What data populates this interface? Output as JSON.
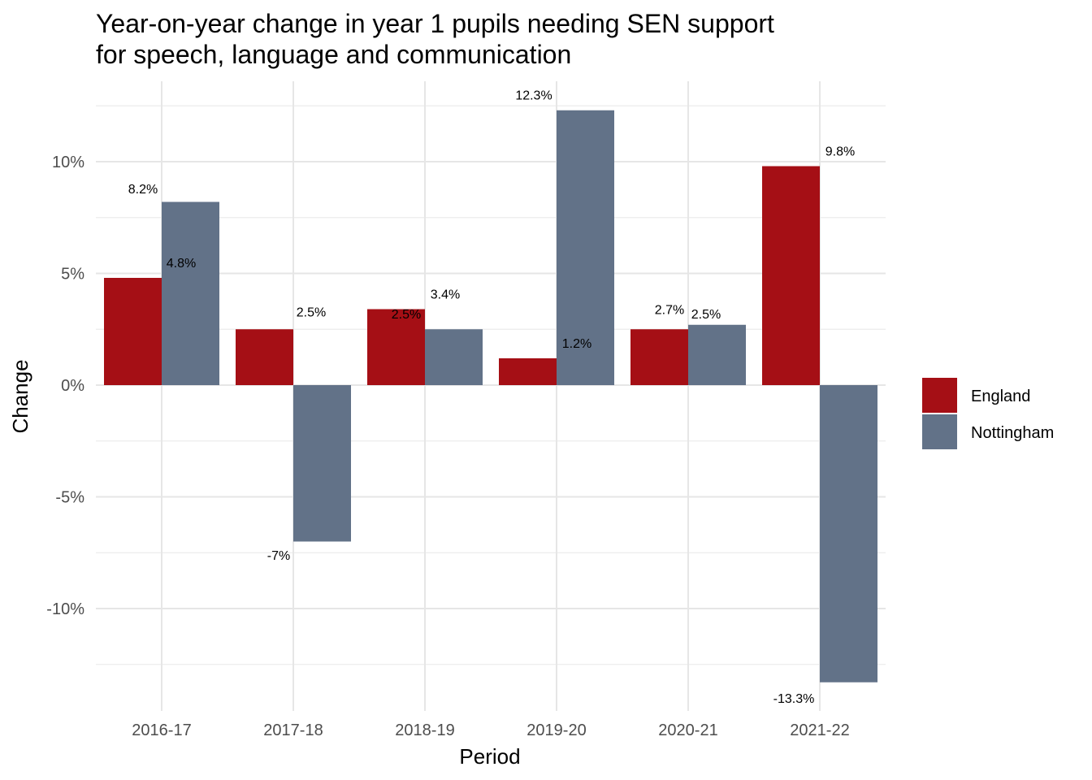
{
  "chart_data": {
    "type": "bar",
    "title_lines": [
      "Year-on-year change in year 1 pupils needing SEN support",
      "for speech, language and communication"
    ],
    "xlabel": "Period",
    "ylabel": "Change",
    "categories": [
      "2016-17",
      "2017-18",
      "2018-19",
      "2019-20",
      "2020-21",
      "2021-22"
    ],
    "series": [
      {
        "name": "England",
        "color": "#a50f15",
        "values": [
          4.8,
          2.5,
          3.4,
          1.2,
          2.5,
          9.8
        ]
      },
      {
        "name": "Nottingham",
        "color": "#627288",
        "values": [
          8.2,
          -7.0,
          2.5,
          12.3,
          2.7,
          -13.3
        ]
      }
    ],
    "data_labels": [
      {
        "category": "2016-17",
        "text": "8.2%",
        "value": 8.2
      },
      {
        "category": "2016-17",
        "text": "4.8%",
        "value": 4.8
      },
      {
        "category": "2017-18",
        "text": "2.5%",
        "value": 2.5
      },
      {
        "category": "2017-18",
        "text": "-7%",
        "value": -7.0
      },
      {
        "category": "2018-19",
        "text": "3.4%",
        "value": 3.4
      },
      {
        "category": "2018-19",
        "text": "2.5%",
        "value": 2.5
      },
      {
        "category": "2019-20",
        "text": "12.3%",
        "value": 12.3
      },
      {
        "category": "2019-20",
        "text": "1.2%",
        "value": 1.2
      },
      {
        "category": "2020-21",
        "text": "2.7%",
        "value": 2.7
      },
      {
        "category": "2020-21",
        "text": "2.5%",
        "value": 2.5
      },
      {
        "category": "2021-22",
        "text": "9.8%",
        "value": 9.8
      },
      {
        "category": "2021-22",
        "text": "-13.3%",
        "value": -13.3
      }
    ],
    "yticks": [
      10,
      5,
      0,
      -5,
      -10
    ],
    "ytick_labels": [
      "10%",
      "5%",
      "0%",
      "-5%",
      "-10%"
    ],
    "ylim": [
      -14.5,
      13.0
    ],
    "grid": true,
    "legend_position": "right"
  }
}
